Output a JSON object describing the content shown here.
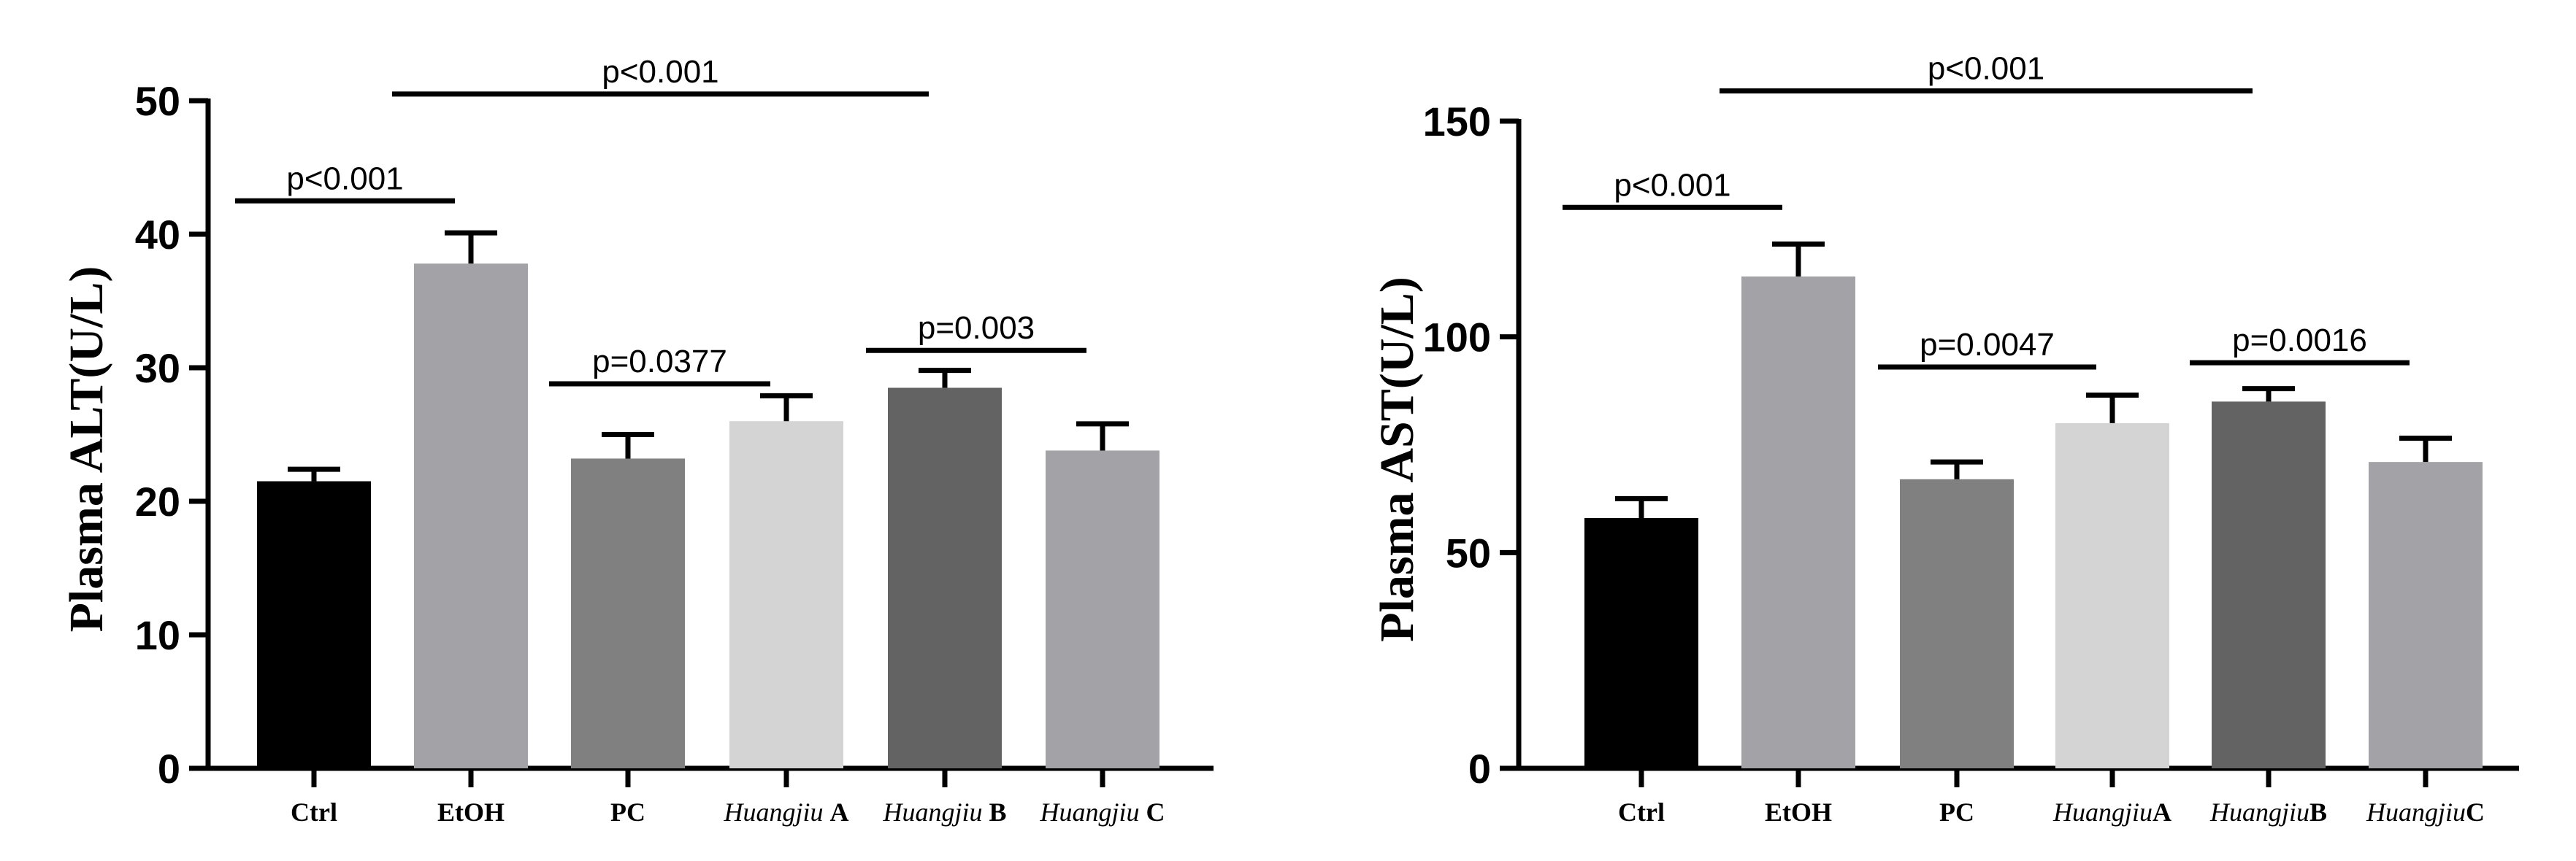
{
  "chart_data": [
    {
      "type": "bar",
      "ylabel": "Plasma ALT(U/L)",
      "xlabel": "",
      "ylim": [
        0,
        50
      ],
      "yticks": [
        0,
        10,
        20,
        30,
        40,
        50
      ],
      "categories": [
        {
          "label": "Ctrl",
          "italic_prefix": ""
        },
        {
          "label": "EtOH",
          "italic_prefix": ""
        },
        {
          "label": "PC",
          "italic_prefix": ""
        },
        {
          "label": "A",
          "italic_prefix": "Huangjiu "
        },
        {
          "label": "B",
          "italic_prefix": "Huangjiu "
        },
        {
          "label": "C",
          "italic_prefix": "Huangjiu "
        }
      ],
      "values": [
        21.5,
        37.8,
        23.2,
        26.0,
        28.5,
        23.8
      ],
      "errors": [
        0.9,
        2.3,
        1.8,
        1.9,
        1.3,
        2.0
      ],
      "colors": [
        "#000000",
        "#a3a2a7",
        "#808080",
        "#d4d4d4",
        "#636363",
        "#a3a2a7"
      ],
      "annotations": [
        {
          "text": "p<0.001",
          "from": 0,
          "to": 1,
          "y": 42.5
        },
        {
          "text": "p<0.001",
          "from": 1,
          "to": 4,
          "y": 50.5
        },
        {
          "text": "p=0.0377",
          "from": 2,
          "to": 3,
          "y": 28.8
        },
        {
          "text": "p=0.003",
          "from": 4,
          "to": 5,
          "y": 31.3
        }
      ]
    },
    {
      "type": "bar",
      "ylabel": "Plasma AST(U/L)",
      "xlabel": "",
      "ylim": [
        0,
        150
      ],
      "yticks": [
        0,
        50,
        100,
        150
      ],
      "categories": [
        {
          "label": "Ctrl",
          "italic_prefix": ""
        },
        {
          "label": "EtOH",
          "italic_prefix": ""
        },
        {
          "label": "PC",
          "italic_prefix": ""
        },
        {
          "label": "A",
          "italic_prefix": "Huangjiu"
        },
        {
          "label": "B",
          "italic_prefix": "Huangjiu"
        },
        {
          "label": "C",
          "italic_prefix": "Huangjiu"
        }
      ],
      "values": [
        58.0,
        114.0,
        67.0,
        80.0,
        85.0,
        71.0
      ],
      "errors": [
        4.5,
        7.5,
        4.0,
        6.5,
        3.0,
        5.5
      ],
      "colors": [
        "#000000",
        "#a3a2a7",
        "#808080",
        "#d4d4d4",
        "#636363",
        "#a3a2a7"
      ],
      "annotations": [
        {
          "text": "p<0.001",
          "from": 0,
          "to": 1,
          "y": 130
        },
        {
          "text": "p<0.001",
          "from": 1,
          "to": 4,
          "y": 157
        },
        {
          "text": "p=0.0047",
          "from": 2,
          "to": 3,
          "y": 93
        },
        {
          "text": "p=0.0016",
          "from": 4,
          "to": 5,
          "y": 94
        }
      ]
    }
  ]
}
